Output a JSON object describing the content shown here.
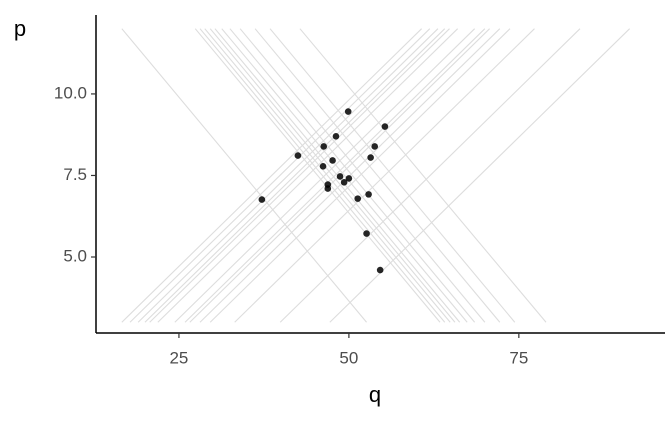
{
  "chart_data": {
    "type": "scatter",
    "x_label": "q",
    "y_label": "p",
    "x": [
      37.2,
      42.5,
      46.3,
      46.2,
      47.6,
      48.1,
      49.9,
      46.9,
      46.9,
      48.7,
      49.3,
      50.0,
      51.3,
      52.9,
      53.2,
      53.8,
      55.3,
      52.6,
      54.6
    ],
    "y": [
      6.76,
      8.11,
      8.39,
      7.78,
      7.96,
      8.7,
      9.46,
      7.22,
      7.1,
      7.47,
      7.29,
      7.41,
      6.79,
      6.92,
      8.05,
      8.39,
      9.0,
      5.72,
      4.6
    ],
    "color": "#000000",
    "lines": [
      {
        "x": [
          16.6,
          60.7
        ],
        "y": [
          3,
          12
        ]
      },
      {
        "x": [
          17.8,
          61.9
        ],
        "y": [
          3,
          12
        ]
      },
      {
        "x": [
          19.0,
          63.1
        ],
        "y": [
          3,
          12
        ]
      },
      {
        "x": [
          20.0,
          64.1
        ],
        "y": [
          3,
          12
        ]
      },
      {
        "x": [
          20.7,
          64.8
        ],
        "y": [
          3,
          12
        ]
      },
      {
        "x": [
          21.9,
          66.0
        ],
        "y": [
          3,
          12
        ]
      },
      {
        "x": [
          24.4,
          68.5
        ],
        "y": [
          3,
          12
        ]
      },
      {
        "x": [
          25.9,
          70.0
        ],
        "y": [
          3,
          12
        ]
      },
      {
        "x": [
          26.6,
          70.7
        ],
        "y": [
          3,
          12
        ]
      },
      {
        "x": [
          28.1,
          72.2
        ],
        "y": [
          3,
          12
        ]
      },
      {
        "x": [
          29.6,
          73.7
        ],
        "y": [
          3,
          12
        ]
      },
      {
        "x": [
          33.2,
          77.3
        ],
        "y": [
          3,
          12
        ]
      },
      {
        "x": [
          39.9,
          84.0
        ],
        "y": [
          3,
          12
        ]
      },
      {
        "x": [
          47.2,
          91.3
        ],
        "y": [
          3,
          12
        ]
      },
      {
        "x": [
          16.6,
          52.6
        ],
        "y": [
          12,
          3
        ]
      },
      {
        "x": [
          27.4,
          63.4
        ],
        "y": [
          12,
          3
        ]
      },
      {
        "x": [
          28.1,
          64.1
        ],
        "y": [
          12,
          3
        ]
      },
      {
        "x": [
          28.8,
          64.9
        ],
        "y": [
          12,
          3
        ]
      },
      {
        "x": [
          29.6,
          65.6
        ],
        "y": [
          12,
          3
        ]
      },
      {
        "x": [
          30.3,
          66.3
        ],
        "y": [
          12,
          3
        ]
      },
      {
        "x": [
          31.3,
          67.4
        ],
        "y": [
          12,
          3
        ]
      },
      {
        "x": [
          32.5,
          68.5
        ],
        "y": [
          12,
          3
        ]
      },
      {
        "x": [
          34.0,
          70.0
        ],
        "y": [
          12,
          3
        ]
      },
      {
        "x": [
          36.2,
          72.2
        ],
        "y": [
          12,
          3
        ]
      },
      {
        "x": [
          38.4,
          74.4
        ],
        "y": [
          12,
          3
        ]
      },
      {
        "x": [
          42.8,
          79.0
        ],
        "y": [
          12,
          3
        ]
      }
    ],
    "line_color": "#dddddd",
    "xlim": [
      12.8,
      96.5
    ],
    "ylim": [
      2.67,
      12.42
    ],
    "xticks": [
      25,
      50,
      75
    ],
    "yticks": [
      {
        "value": 5,
        "label": "5.0"
      },
      {
        "value": 7.5,
        "label": "7.5"
      },
      {
        "value": 10,
        "label": "10.0"
      }
    ],
    "grid": false
  }
}
